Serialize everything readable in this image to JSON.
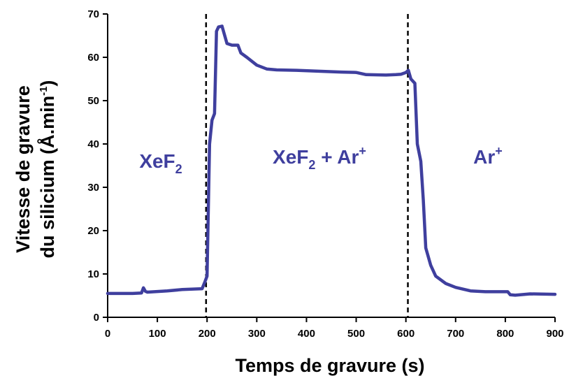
{
  "chart_data": {
    "type": "line",
    "xlabel": "Temps de gravure (s)",
    "ylabel_line1": "Vitesse de gravure",
    "ylabel_line2_main": "du silicium (Å.min",
    "ylabel_line2_sup": "-1",
    "ylabel_line2_end": ")",
    "xlim": [
      0,
      900
    ],
    "ylim": [
      0,
      70
    ],
    "xticks": [
      0,
      100,
      200,
      300,
      400,
      500,
      600,
      700,
      800,
      900
    ],
    "yticks": [
      0,
      10,
      20,
      30,
      40,
      50,
      60,
      70
    ],
    "series_color": "#3f3f9e",
    "series": [
      {
        "x": [
          0,
          50,
          68,
          72,
          76,
          80,
          120,
          150,
          190,
          195,
          200,
          205,
          210,
          215,
          219,
          223,
          230,
          240,
          250,
          262,
          268,
          280,
          300,
          320,
          340,
          380,
          420,
          470,
          500,
          520,
          560,
          580,
          590,
          600,
          605,
          610,
          618,
          623,
          630,
          635,
          640,
          650,
          660,
          680,
          700,
          730,
          760,
          805,
          810,
          820,
          850,
          900
        ],
        "y": [
          5.5,
          5.5,
          5.6,
          6.8,
          6.0,
          5.8,
          6.1,
          6.4,
          6.6,
          8.0,
          9.5,
          40.0,
          45.5,
          47.0,
          66.0,
          67.0,
          67.2,
          63.2,
          62.8,
          62.8,
          61.0,
          60.0,
          58.2,
          57.3,
          57.1,
          57.0,
          56.8,
          56.6,
          56.5,
          56.0,
          55.9,
          56.0,
          56.1,
          56.5,
          57.0,
          55.0,
          54.0,
          40.0,
          36.0,
          27.0,
          16.0,
          12.0,
          9.5,
          7.8,
          6.9,
          6.1,
          5.9,
          5.9,
          5.2,
          5.1,
          5.4,
          5.3
        ]
      }
    ],
    "vlines": [
      198,
      604
    ],
    "regions": [
      {
        "label": "XeF",
        "sub": "2",
        "tail": "",
        "sup": ""
      },
      {
        "label": "XeF",
        "sub": "2",
        "tail": " + Ar",
        "sup": "+"
      },
      {
        "label": "Ar",
        "sub": "",
        "tail": "",
        "sup": "+"
      }
    ]
  }
}
